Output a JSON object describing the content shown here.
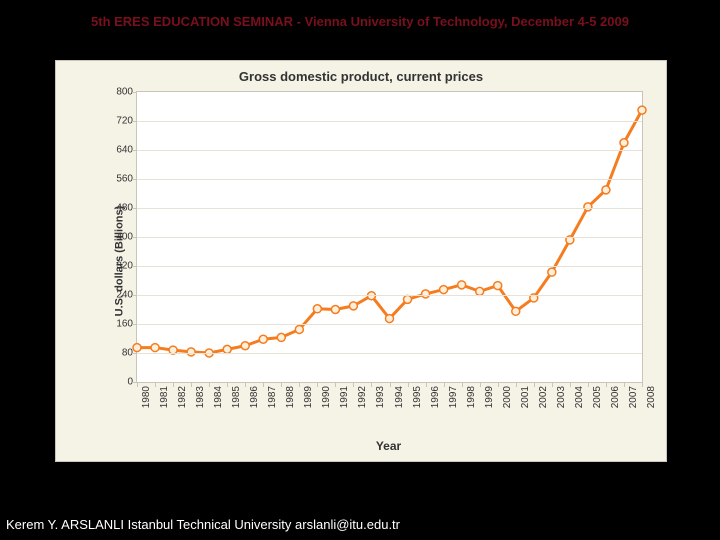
{
  "header": "5th ERES EDUCATION SEMINAR - Vienna University of Technology, December 4-5 2009",
  "footer": "Kerem Y. ARSLANLI Istanbul Technical University arslanli@itu.edu.tr",
  "chart": {
    "type": "line",
    "title": "Gross domestic product, current prices",
    "xlabel": "Year",
    "ylabel": "U.S. dollars (Billions)",
    "background_color": "#f5f2e6",
    "plot_background": "#ffffff",
    "border_color": "#c9c6b9",
    "grid_color": "#e6e3d6",
    "line_color": "#f57c1f",
    "line_width": 3,
    "marker_fill": "#fff0dc",
    "marker_stroke": "#f57c1f",
    "marker_radius": 4,
    "title_fontsize": 13,
    "label_fontsize": 11,
    "tick_fontsize": 10,
    "ylim": [
      0,
      800
    ],
    "ytick_step": 80,
    "x_categories": [
      "1980",
      "1981",
      "1982",
      "1983",
      "1984",
      "1985",
      "1986",
      "1987",
      "1988",
      "1989",
      "1990",
      "1991",
      "1992",
      "1993",
      "1994",
      "1995",
      "1996",
      "1997",
      "1998",
      "1999",
      "2000",
      "2001",
      "2002",
      "2003",
      "2004",
      "2005",
      "2006",
      "2007",
      "2008"
    ],
    "values": [
      95,
      95,
      88,
      83,
      80,
      90,
      100,
      118,
      123,
      145,
      202,
      200,
      210,
      238,
      175,
      228,
      243,
      255,
      268,
      250,
      266,
      195,
      232,
      303,
      392,
      483,
      530,
      660,
      750
    ]
  }
}
